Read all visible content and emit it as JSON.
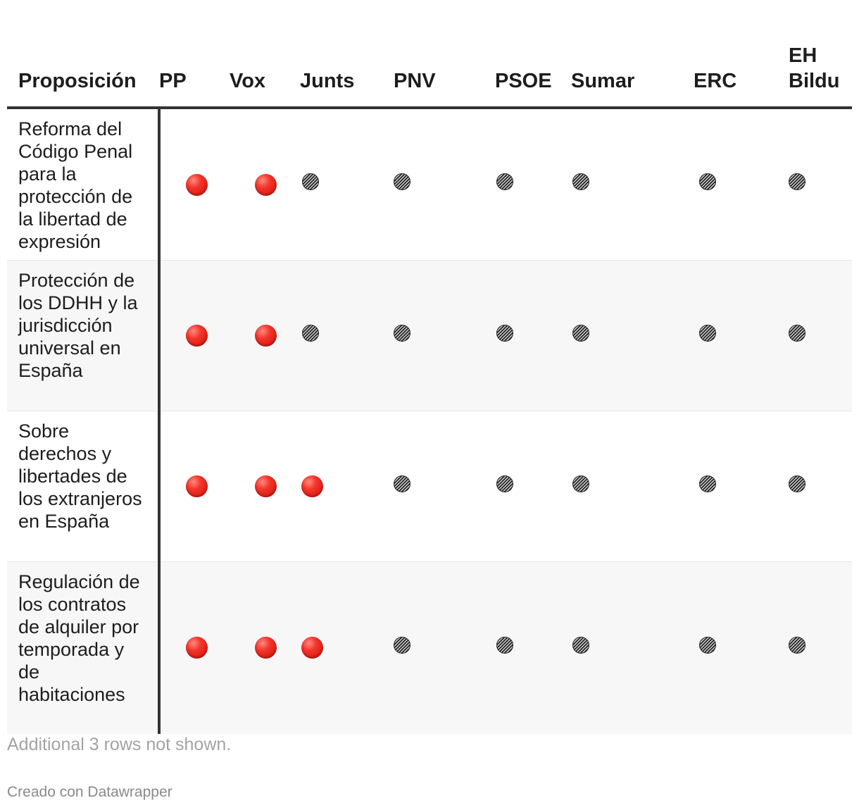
{
  "chart_data": {
    "type": "table",
    "columns": [
      "Proposición",
      "PP",
      "Vox",
      "Junts",
      "PNV",
      "PSOE",
      "Sumar",
      "ERC",
      "EH Bildu"
    ],
    "vote_symbols": {
      "red": "red-circle",
      "grey": "grey-hatched-circle"
    },
    "colors": {
      "red": "#e8271f",
      "grey": "#555555",
      "rule": "#333333",
      "alt_row": "#f7f7f7"
    },
    "rows": [
      {
        "proposicion": "Reforma del Código Penal para la protección de la libertad de expresión",
        "votes": [
          "red",
          "red",
          "grey",
          "grey",
          "grey",
          "grey",
          "grey",
          "grey"
        ]
      },
      {
        "proposicion": "Protección de los DDHH y la jurisdicción universal en España",
        "votes": [
          "red",
          "red",
          "grey",
          "grey",
          "grey",
          "grey",
          "grey",
          "grey"
        ]
      },
      {
        "proposicion": "Sobre derechos y libertades de los extranjeros en España",
        "votes": [
          "red",
          "red",
          "red",
          "grey",
          "grey",
          "grey",
          "grey",
          "grey"
        ]
      },
      {
        "proposicion": "Regulación de los contratos de alquiler por temporada y de habitaciones",
        "votes": [
          "red",
          "red",
          "red",
          "grey",
          "grey",
          "grey",
          "grey",
          "grey"
        ]
      }
    ],
    "footnote": "Additional 3 rows not shown.",
    "credit": "Creado con Datawrapper"
  }
}
